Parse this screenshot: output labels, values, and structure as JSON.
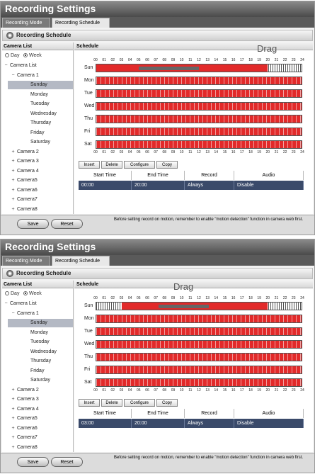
{
  "window_title": "Recording Settings",
  "tabs": [
    "Recording Mode",
    "Recording Schedule"
  ],
  "section_title": "Recording Schedule",
  "camera_list_header": "Camera List",
  "schedule_header": "Schedule",
  "radio_day": "Day",
  "radio_week": "Week",
  "tree": {
    "root": "Camera List",
    "camera1": "Camera 1",
    "days": [
      "Sunday",
      "Monday",
      "Tuesday",
      "Wednesday",
      "Thursday",
      "Friday",
      "Saturday"
    ],
    "others": [
      "Camera 2",
      "Camera 3",
      "Camera 4",
      "Camera5",
      "Camera6",
      "Camera7",
      "Camera8"
    ]
  },
  "hours": [
    "00",
    "01",
    "02",
    "03",
    "04",
    "05",
    "06",
    "07",
    "08",
    "09",
    "10",
    "11",
    "12",
    "13",
    "14",
    "15",
    "16",
    "17",
    "18",
    "19",
    "20",
    "21",
    "22",
    "23",
    "24"
  ],
  "day_labels": [
    "Sun",
    "Mon",
    "Tue",
    "Wed",
    "Thu",
    "Fri",
    "Sat"
  ],
  "drag_label": "Drag",
  "buttons": {
    "insert": "Insert",
    "delete": "Delete",
    "configure": "Configure",
    "copy": "Copy",
    "save": "Save",
    "reset": "Reset"
  },
  "table_headers": [
    "Start Time",
    "End Time",
    "Record",
    "Audio"
  ],
  "panels": [
    {
      "row": [
        "00:00",
        "20:00",
        "Always",
        "Disable"
      ],
      "sun_start_hour": 0,
      "sun_end_hour": 20
    },
    {
      "row": [
        "03:00",
        "20:00",
        "Always",
        "Disable"
      ],
      "sun_start_hour": 3,
      "sun_end_hour": 20
    }
  ],
  "note": "Before setting record on motion, remember to enable \"motion detection\" function in camera web first.",
  "colors": {
    "schedule_red": "#e22a2a",
    "selected_row": "#3a4a6a"
  }
}
